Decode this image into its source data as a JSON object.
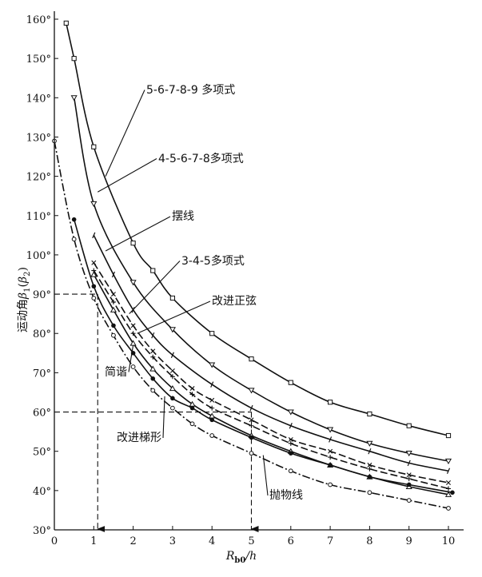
{
  "chart_data": {
    "type": "line",
    "title": "",
    "xlabel": "R_b0/h",
    "xlabel_main": "R",
    "xlabel_sub": "b0",
    "xlabel_suffix": "/h",
    "ylabel": "运动角β1(β2)",
    "ylabel_main": "运动角",
    "ylabel_beta": "β",
    "ylabel_sub1": "1",
    "ylabel_sub2": "2",
    "ylabel_open": "(",
    "ylabel_close": ")",
    "xlim": [
      0,
      10
    ],
    "ylim": [
      30,
      160
    ],
    "x_ticks": [
      "0",
      "1",
      "2",
      "3",
      "4",
      "5",
      "6",
      "7",
      "8",
      "9",
      "10"
    ],
    "y_ticks": [
      "30°",
      "40°",
      "50°",
      "60°",
      "70°",
      "80°",
      "90°",
      "100°",
      "110°",
      "120°",
      "130°",
      "140°",
      "150°",
      "160°"
    ],
    "series": [
      {
        "name": "5-6-7-8-9 多项式",
        "marker": "square",
        "dash": "solid",
        "x": [
          0.3,
          0.5,
          1,
          2,
          2.5,
          3,
          4,
          5,
          6,
          7,
          8,
          9,
          10
        ],
        "y": [
          159,
          150,
          127.5,
          103,
          96,
          89,
          80,
          73.5,
          67.5,
          62.5,
          59.5,
          56.5,
          54
        ]
      },
      {
        "name": "4-5-6-7-8多项式",
        "marker": "triangle-down",
        "dash": "solid",
        "x": [
          0.5,
          1,
          2,
          3,
          4,
          5,
          6,
          7,
          8,
          9,
          10
        ],
        "y": [
          140,
          113,
          93,
          81,
          72,
          65.5,
          60,
          55.5,
          52,
          49.5,
          47.5
        ]
      },
      {
        "name": "摆线",
        "marker": "tick",
        "dash": "solid",
        "x": [
          1,
          1.5,
          2,
          2.5,
          3,
          4,
          5,
          6,
          7,
          8,
          9,
          10
        ],
        "y": [
          105,
          95,
          86,
          79.5,
          74.5,
          67,
          61,
          56.5,
          53,
          50,
          47,
          45
        ]
      },
      {
        "name": "3-4-5多项式",
        "marker": "x",
        "dash": "dashed",
        "x": [
          1,
          1.5,
          2,
          2.5,
          3,
          3.5,
          4,
          5,
          6,
          7,
          8,
          9,
          10
        ],
        "y": [
          98,
          90,
          82,
          75.5,
          70.5,
          66,
          63,
          58,
          53,
          50,
          46.5,
          44,
          42
        ]
      },
      {
        "name": "改进正弦",
        "marker": "plus",
        "dash": "dashed",
        "x": [
          1,
          1.5,
          2,
          2.5,
          3,
          3.5,
          4,
          5,
          6,
          7,
          8,
          9,
          10
        ],
        "y": [
          96,
          88,
          80,
          74,
          69,
          64.5,
          61,
          56.5,
          52,
          48.5,
          45.5,
          43,
          40.5
        ]
      },
      {
        "name": "简谐",
        "marker": "triangle-up",
        "dash": "solid",
        "x": [
          1,
          1.5,
          2,
          2.5,
          3,
          3.5,
          4,
          5,
          6,
          7,
          8,
          9,
          10
        ],
        "y": [
          95,
          86,
          77.5,
          71,
          66,
          62,
          59,
          54,
          50,
          46.5,
          43.5,
          41,
          39
        ]
      },
      {
        "name": "改进梯形",
        "marker": "dot",
        "dash": "solid",
        "x": [
          0.5,
          1,
          1.5,
          2,
          2.5,
          3,
          3.5,
          4,
          5,
          6,
          7,
          8,
          9,
          10.1
        ],
        "y": [
          109,
          92,
          82,
          75,
          68.5,
          63.5,
          61,
          58,
          53.5,
          49.5,
          46.5,
          43.5,
          41.5,
          39.5
        ]
      },
      {
        "name": "抛物线",
        "marker": "circle",
        "dash": "dashdot",
        "x": [
          0,
          0.5,
          1,
          1.5,
          2,
          2.5,
          3,
          3.5,
          4,
          5,
          6,
          7,
          8,
          9,
          10
        ],
        "y": [
          129,
          104,
          89,
          79.5,
          71.5,
          65.5,
          61,
          57,
          54,
          49.5,
          45,
          41.5,
          39.5,
          37.5,
          35.5
        ]
      }
    ],
    "annotations": [
      {
        "text": "5-6-7-8-9 多项式",
        "series": 0,
        "point": [
          1.3,
          120
        ]
      },
      {
        "text": "4-5-6-7-8多项式",
        "series": 1,
        "point": [
          1.1,
          116
        ]
      },
      {
        "text": "摆线",
        "series": 2,
        "point": [
          1.3,
          101
        ]
      },
      {
        "text": "3-4-5多项式",
        "series": 3,
        "point": [
          1.9,
          85
        ]
      },
      {
        "text": "改进正弦",
        "series": 4,
        "point": [
          2.1,
          80
        ]
      },
      {
        "text": "简谐",
        "series": 5,
        "point": [
          2.0,
          77
        ]
      },
      {
        "text": "改进梯形",
        "series": 6,
        "point": [
          2.8,
          64
        ]
      },
      {
        "text": "抛物线",
        "series": 7,
        "point": [
          5.3,
          49
        ]
      }
    ],
    "reference_lines": [
      {
        "x": 1.1,
        "y": 90
      },
      {
        "x": 5.0,
        "y": 60
      }
    ]
  }
}
